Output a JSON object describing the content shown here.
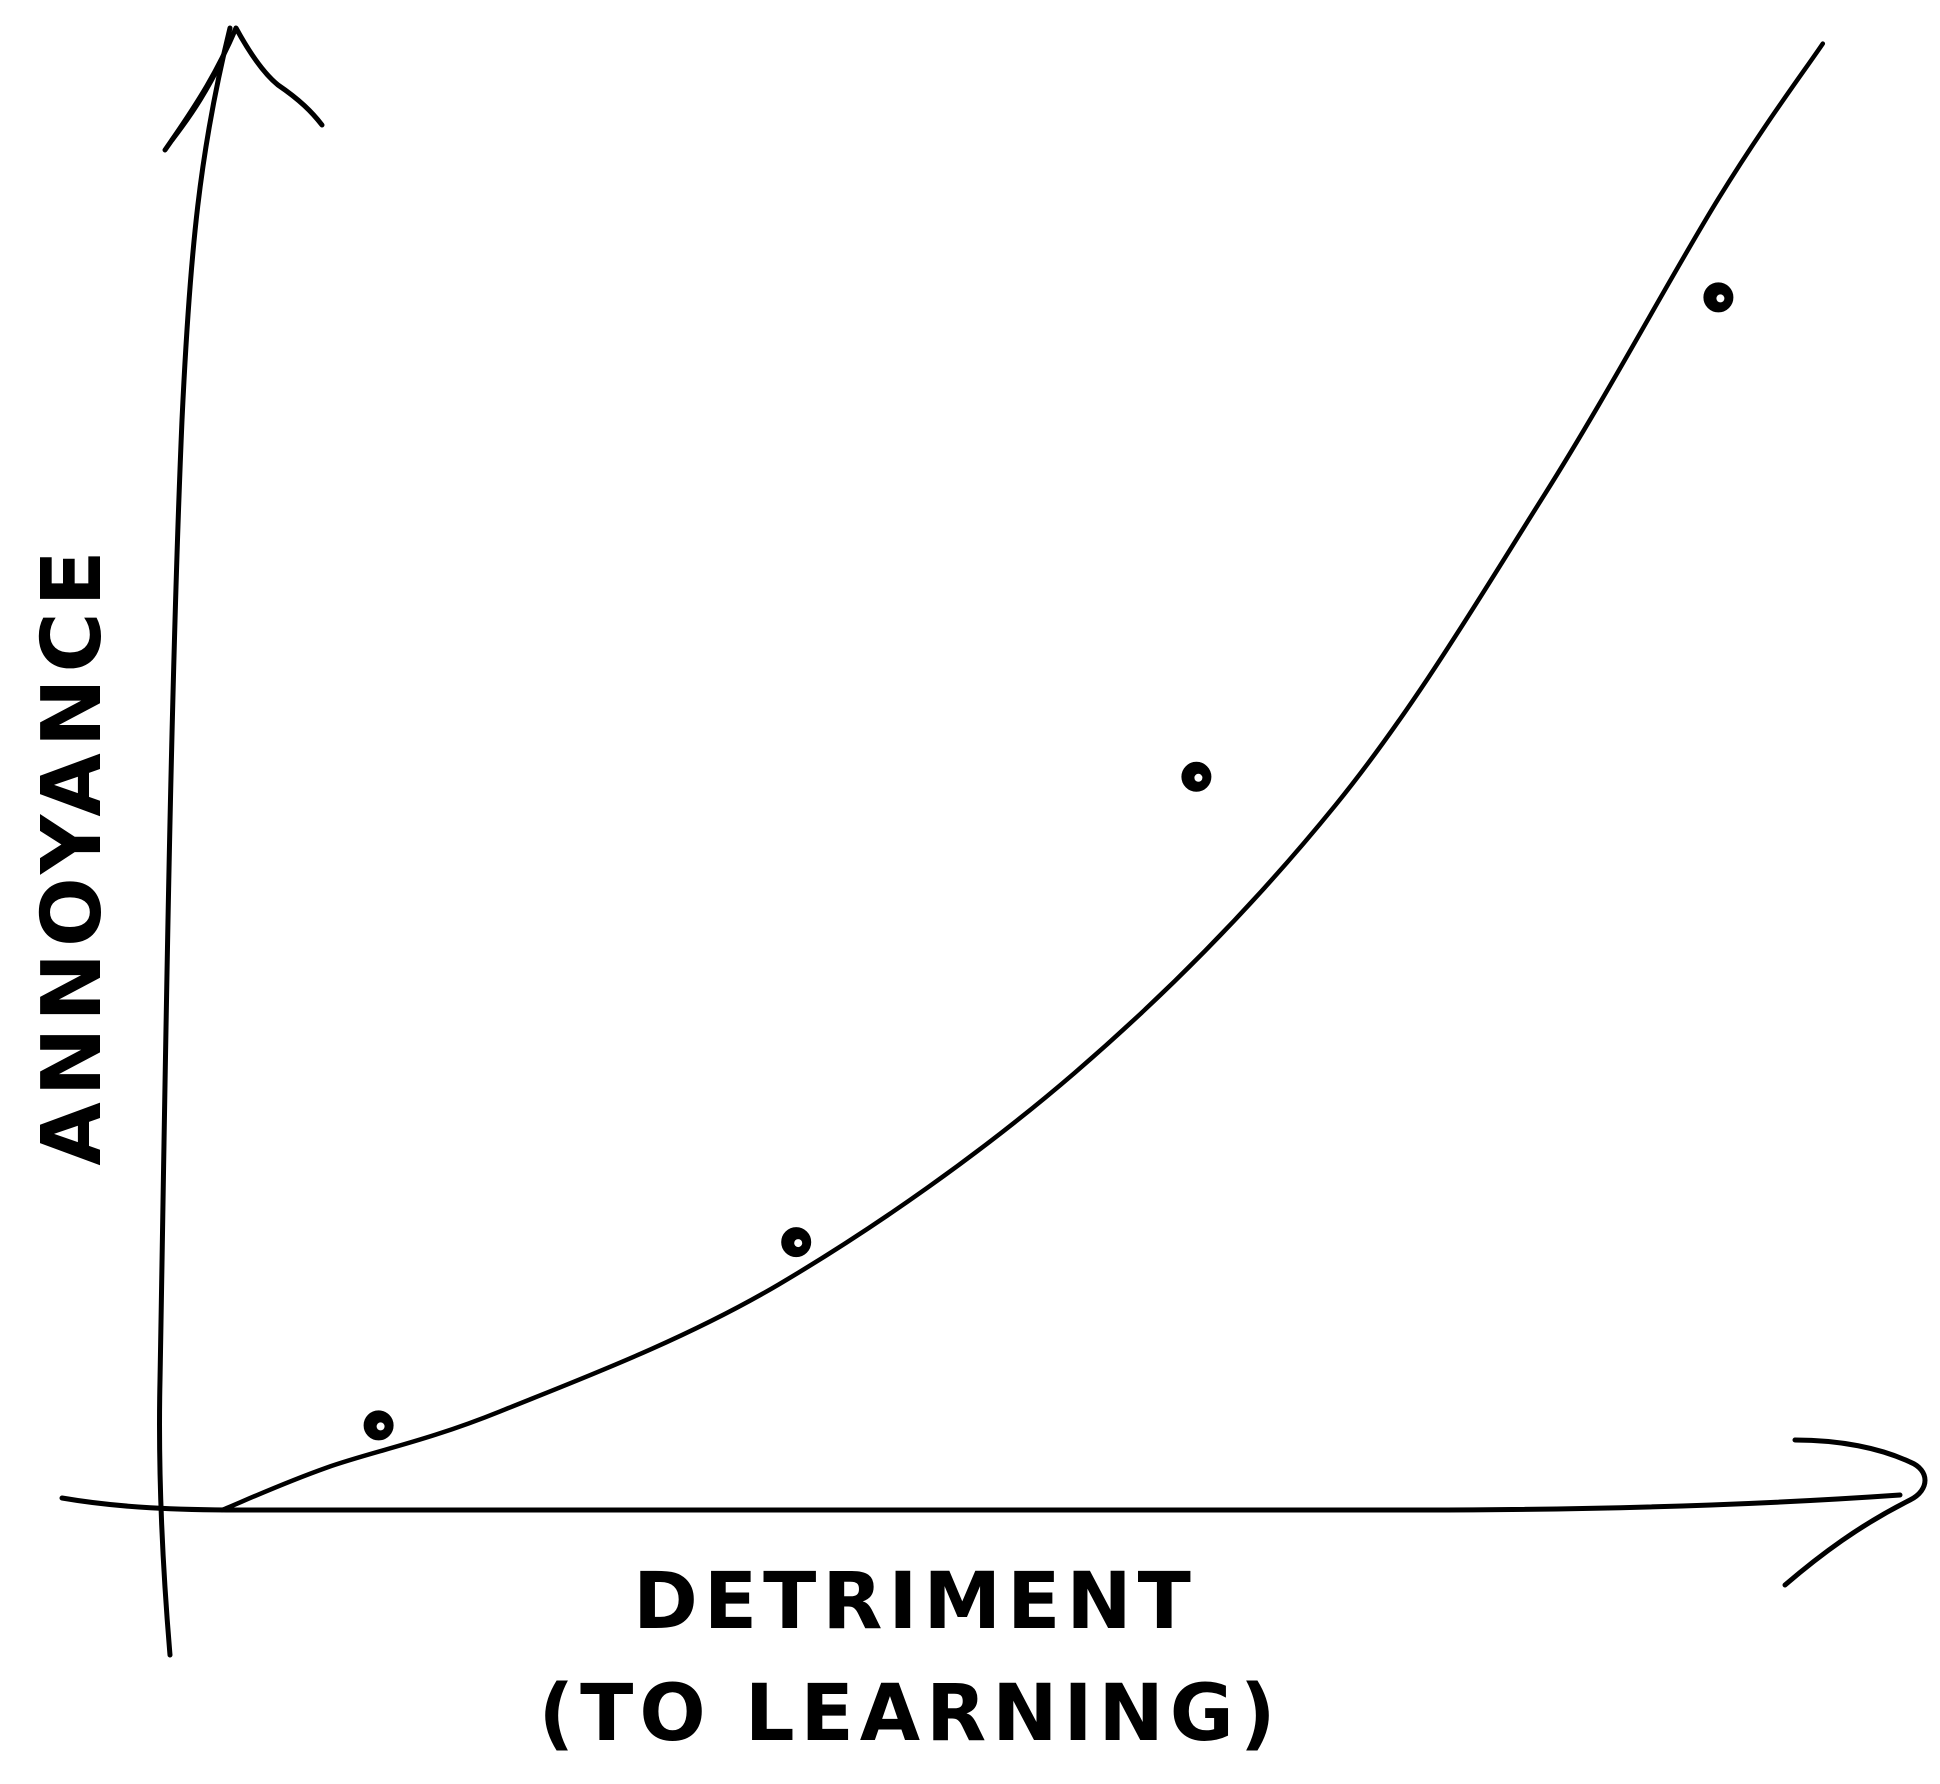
{
  "chart_data": {
    "type": "scatter",
    "title": "",
    "xlabel": "DETRIMENT",
    "xlabel_sub": "(TO LEARNING)",
    "ylabel": "ANNOYANCE",
    "tick_labels_shown": false,
    "grid": false,
    "legend": "none",
    "xlim": [
      0,
      10
    ],
    "ylim": [
      0,
      10
    ],
    "series": [
      {
        "kind": "points",
        "x": [
          0.9,
          3.3,
          5.6,
          8.6
        ],
        "y": [
          0.6,
          1.9,
          5.2,
          8.6
        ]
      },
      {
        "kind": "trend-curve",
        "x": [
          0,
          0.6,
          1.6,
          3.2,
          4.9,
          6.4,
          7.6,
          8.6,
          9.2
        ],
        "y": [
          0,
          0.3,
          0.7,
          1.6,
          3.1,
          5.0,
          7.2,
          9.3,
          10.4
        ]
      }
    ],
    "colors": {
      "ink": "#000000",
      "background": "#ffffff"
    }
  }
}
